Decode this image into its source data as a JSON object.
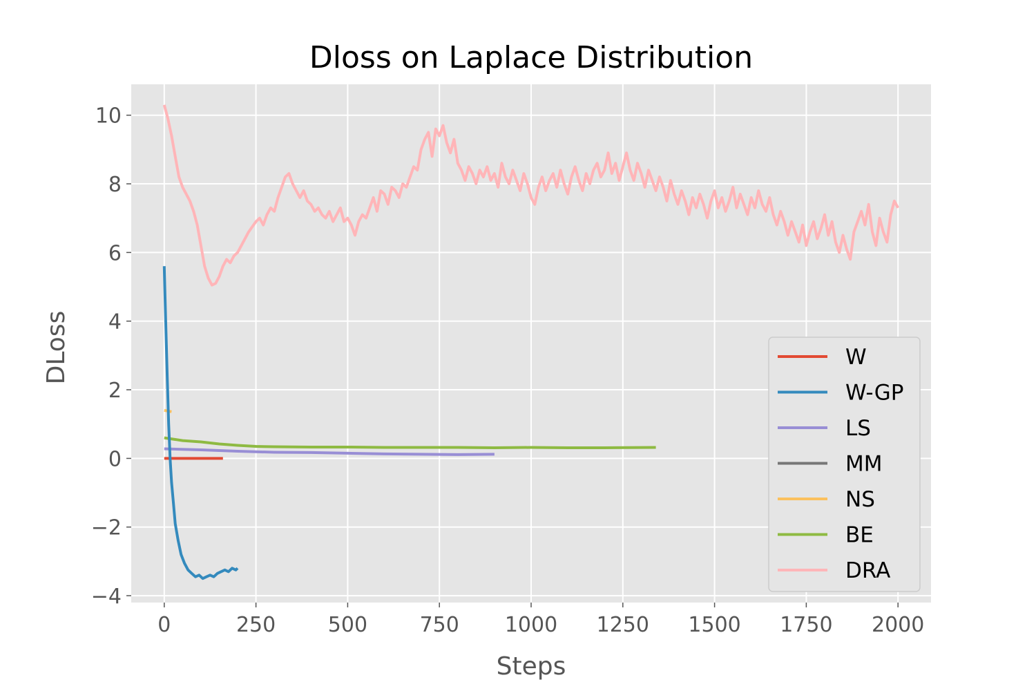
{
  "chart_data": {
    "type": "line",
    "title": "Dloss on Laplace Distribution",
    "xlabel": "Steps",
    "ylabel": "DLoss",
    "xlim": [
      -90,
      2090
    ],
    "ylim": [
      -4.2,
      10.9
    ],
    "xticks": [
      0,
      250,
      500,
      750,
      1000,
      1250,
      1500,
      1750,
      2000
    ],
    "xtick_labels": [
      "0",
      "250",
      "500",
      "750",
      "1000",
      "1250",
      "1500",
      "1750",
      "2000"
    ],
    "yticks": [
      -4,
      -2,
      0,
      2,
      4,
      6,
      8,
      10
    ],
    "ytick_labels": [
      "−4",
      "−2",
      "0",
      "2",
      "4",
      "6",
      "8",
      "10"
    ],
    "grid": true,
    "legend_position": "lower-right",
    "series": [
      {
        "name": "W",
        "color": "#E24A33",
        "points": [
          [
            0,
            0.0
          ],
          [
            160,
            0.0
          ]
        ]
      },
      {
        "name": "W-GP",
        "color": "#348ABD",
        "points": [
          [
            0,
            5.6
          ],
          [
            4,
            4.0
          ],
          [
            8,
            2.4
          ],
          [
            12,
            1.0
          ],
          [
            16,
            0.0
          ],
          [
            20,
            -0.7
          ],
          [
            25,
            -1.3
          ],
          [
            30,
            -1.9
          ],
          [
            38,
            -2.4
          ],
          [
            46,
            -2.8
          ],
          [
            55,
            -3.05
          ],
          [
            65,
            -3.25
          ],
          [
            75,
            -3.35
          ],
          [
            85,
            -3.45
          ],
          [
            95,
            -3.4
          ],
          [
            105,
            -3.5
          ],
          [
            115,
            -3.45
          ],
          [
            125,
            -3.4
          ],
          [
            135,
            -3.45
          ],
          [
            145,
            -3.35
          ],
          [
            155,
            -3.3
          ],
          [
            165,
            -3.25
          ],
          [
            175,
            -3.3
          ],
          [
            185,
            -3.2
          ],
          [
            195,
            -3.25
          ],
          [
            200,
            -3.2
          ]
        ]
      },
      {
        "name": "LS",
        "color": "#988ED5",
        "points": [
          [
            0,
            0.28
          ],
          [
            100,
            0.25
          ],
          [
            200,
            0.21
          ],
          [
            300,
            0.18
          ],
          [
            400,
            0.17
          ],
          [
            500,
            0.15
          ],
          [
            600,
            0.13
          ],
          [
            700,
            0.12
          ],
          [
            800,
            0.11
          ],
          [
            900,
            0.12
          ]
        ]
      },
      {
        "name": "MM",
        "color": "#777777",
        "points": []
      },
      {
        "name": "NS",
        "color": "#FBC15E",
        "points": [
          [
            0,
            1.4
          ],
          [
            10,
            1.38
          ],
          [
            20,
            1.36
          ]
        ]
      },
      {
        "name": "BE",
        "color": "#8EBA42",
        "points": [
          [
            0,
            0.6
          ],
          [
            50,
            0.52
          ],
          [
            100,
            0.48
          ],
          [
            150,
            0.42
          ],
          [
            200,
            0.38
          ],
          [
            250,
            0.35
          ],
          [
            300,
            0.34
          ],
          [
            400,
            0.33
          ],
          [
            500,
            0.33
          ],
          [
            600,
            0.32
          ],
          [
            700,
            0.32
          ],
          [
            800,
            0.32
          ],
          [
            900,
            0.31
          ],
          [
            1000,
            0.32
          ],
          [
            1100,
            0.31
          ],
          [
            1200,
            0.31
          ],
          [
            1340,
            0.32
          ]
        ]
      },
      {
        "name": "DRA",
        "color": "#FFB5B8",
        "points": [
          [
            0,
            10.3
          ],
          [
            10,
            9.9
          ],
          [
            20,
            9.4
          ],
          [
            30,
            8.8
          ],
          [
            40,
            8.2
          ],
          [
            50,
            7.9
          ],
          [
            60,
            7.7
          ],
          [
            70,
            7.5
          ],
          [
            80,
            7.2
          ],
          [
            90,
            6.8
          ],
          [
            100,
            6.2
          ],
          [
            110,
            5.6
          ],
          [
            120,
            5.25
          ],
          [
            130,
            5.05
          ],
          [
            140,
            5.1
          ],
          [
            150,
            5.3
          ],
          [
            160,
            5.6
          ],
          [
            170,
            5.8
          ],
          [
            180,
            5.7
          ],
          [
            190,
            5.9
          ],
          [
            200,
            6.0
          ],
          [
            210,
            6.2
          ],
          [
            220,
            6.4
          ],
          [
            230,
            6.6
          ],
          [
            240,
            6.75
          ],
          [
            250,
            6.9
          ],
          [
            260,
            7.0
          ],
          [
            270,
            6.8
          ],
          [
            280,
            7.1
          ],
          [
            290,
            7.3
          ],
          [
            300,
            7.2
          ],
          [
            310,
            7.6
          ],
          [
            320,
            7.9
          ],
          [
            330,
            8.2
          ],
          [
            340,
            8.3
          ],
          [
            350,
            8.0
          ],
          [
            360,
            7.8
          ],
          [
            370,
            7.6
          ],
          [
            380,
            7.8
          ],
          [
            390,
            7.5
          ],
          [
            400,
            7.4
          ],
          [
            410,
            7.2
          ],
          [
            420,
            7.3
          ],
          [
            430,
            7.1
          ],
          [
            440,
            7.0
          ],
          [
            450,
            7.2
          ],
          [
            460,
            6.9
          ],
          [
            470,
            7.1
          ],
          [
            480,
            7.3
          ],
          [
            490,
            6.9
          ],
          [
            500,
            7.0
          ],
          [
            510,
            6.8
          ],
          [
            520,
            6.5
          ],
          [
            530,
            6.9
          ],
          [
            540,
            7.1
          ],
          [
            550,
            7.0
          ],
          [
            560,
            7.3
          ],
          [
            570,
            7.6
          ],
          [
            580,
            7.2
          ],
          [
            590,
            7.8
          ],
          [
            600,
            7.7
          ],
          [
            610,
            7.4
          ],
          [
            620,
            7.9
          ],
          [
            630,
            7.8
          ],
          [
            640,
            7.6
          ],
          [
            650,
            8.0
          ],
          [
            660,
            7.9
          ],
          [
            670,
            8.2
          ],
          [
            680,
            8.5
          ],
          [
            690,
            8.4
          ],
          [
            700,
            9.0
          ],
          [
            710,
            9.3
          ],
          [
            720,
            9.5
          ],
          [
            730,
            8.8
          ],
          [
            740,
            9.6
          ],
          [
            750,
            9.4
          ],
          [
            760,
            9.7
          ],
          [
            770,
            9.2
          ],
          [
            780,
            8.9
          ],
          [
            790,
            9.3
          ],
          [
            800,
            8.6
          ],
          [
            810,
            8.4
          ],
          [
            820,
            8.1
          ],
          [
            830,
            8.5
          ],
          [
            840,
            8.3
          ],
          [
            850,
            8.0
          ],
          [
            860,
            8.4
          ],
          [
            870,
            8.2
          ],
          [
            880,
            8.5
          ],
          [
            890,
            8.1
          ],
          [
            900,
            8.3
          ],
          [
            910,
            7.9
          ],
          [
            920,
            8.6
          ],
          [
            930,
            8.2
          ],
          [
            940,
            8.0
          ],
          [
            950,
            8.4
          ],
          [
            960,
            8.1
          ],
          [
            970,
            7.8
          ],
          [
            980,
            8.3
          ],
          [
            990,
            8.0
          ],
          [
            1000,
            7.6
          ],
          [
            1010,
            7.4
          ],
          [
            1020,
            7.9
          ],
          [
            1030,
            8.2
          ],
          [
            1040,
            7.8
          ],
          [
            1050,
            8.1
          ],
          [
            1060,
            8.3
          ],
          [
            1070,
            7.9
          ],
          [
            1080,
            8.4
          ],
          [
            1090,
            8.0
          ],
          [
            1100,
            7.7
          ],
          [
            1110,
            8.2
          ],
          [
            1120,
            8.5
          ],
          [
            1130,
            8.1
          ],
          [
            1140,
            7.8
          ],
          [
            1150,
            8.3
          ],
          [
            1160,
            8.0
          ],
          [
            1170,
            8.4
          ],
          [
            1180,
            8.6
          ],
          [
            1190,
            8.2
          ],
          [
            1200,
            8.4
          ],
          [
            1210,
            8.9
          ],
          [
            1220,
            8.3
          ],
          [
            1230,
            8.6
          ],
          [
            1240,
            8.1
          ],
          [
            1250,
            8.5
          ],
          [
            1260,
            8.9
          ],
          [
            1270,
            8.4
          ],
          [
            1280,
            8.1
          ],
          [
            1290,
            8.6
          ],
          [
            1300,
            8.3
          ],
          [
            1310,
            7.9
          ],
          [
            1320,
            8.4
          ],
          [
            1330,
            8.1
          ],
          [
            1340,
            7.8
          ],
          [
            1350,
            8.2
          ],
          [
            1360,
            7.9
          ],
          [
            1370,
            7.5
          ],
          [
            1380,
            8.1
          ],
          [
            1390,
            7.7
          ],
          [
            1400,
            7.4
          ],
          [
            1410,
            7.8
          ],
          [
            1420,
            7.5
          ],
          [
            1430,
            7.1
          ],
          [
            1440,
            7.6
          ],
          [
            1450,
            7.3
          ],
          [
            1460,
            7.7
          ],
          [
            1470,
            7.4
          ],
          [
            1480,
            7.0
          ],
          [
            1490,
            7.5
          ],
          [
            1500,
            7.8
          ],
          [
            1510,
            7.3
          ],
          [
            1520,
            7.6
          ],
          [
            1530,
            7.2
          ],
          [
            1540,
            7.5
          ],
          [
            1550,
            7.9
          ],
          [
            1560,
            7.3
          ],
          [
            1570,
            7.7
          ],
          [
            1580,
            7.4
          ],
          [
            1590,
            7.1
          ],
          [
            1600,
            7.6
          ],
          [
            1610,
            7.3
          ],
          [
            1620,
            7.8
          ],
          [
            1630,
            7.4
          ],
          [
            1640,
            7.2
          ],
          [
            1650,
            7.6
          ],
          [
            1660,
            7.1
          ],
          [
            1670,
            6.8
          ],
          [
            1680,
            7.2
          ],
          [
            1690,
            6.9
          ],
          [
            1700,
            6.5
          ],
          [
            1710,
            6.9
          ],
          [
            1720,
            6.6
          ],
          [
            1730,
            6.3
          ],
          [
            1740,
            6.8
          ],
          [
            1750,
            6.2
          ],
          [
            1760,
            6.6
          ],
          [
            1770,
            6.9
          ],
          [
            1780,
            6.4
          ],
          [
            1790,
            6.7
          ],
          [
            1800,
            7.1
          ],
          [
            1810,
            6.5
          ],
          [
            1820,
            6.9
          ],
          [
            1830,
            6.3
          ],
          [
            1840,
            6.0
          ],
          [
            1850,
            6.5
          ],
          [
            1860,
            6.1
          ],
          [
            1870,
            5.8
          ],
          [
            1880,
            6.6
          ],
          [
            1890,
            6.9
          ],
          [
            1900,
            7.2
          ],
          [
            1910,
            6.8
          ],
          [
            1920,
            7.4
          ],
          [
            1930,
            6.6
          ],
          [
            1940,
            6.2
          ],
          [
            1950,
            7.0
          ],
          [
            1960,
            6.6
          ],
          [
            1970,
            6.3
          ],
          [
            1980,
            7.1
          ],
          [
            1990,
            7.5
          ],
          [
            2000,
            7.3
          ]
        ]
      }
    ]
  }
}
